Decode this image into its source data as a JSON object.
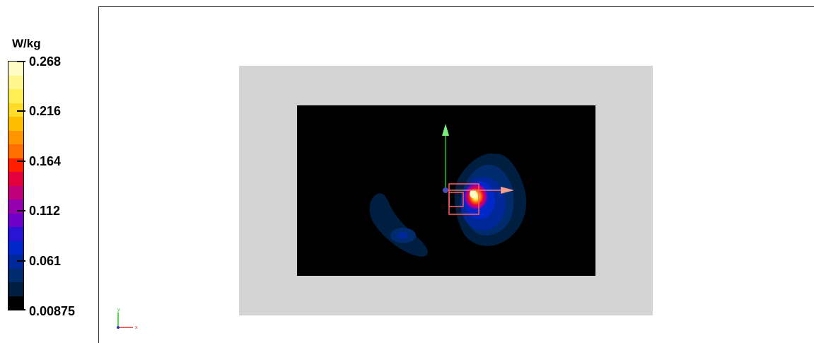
{
  "legend": {
    "unit": "W/kg",
    "ticks": [
      "0.268",
      "0.216",
      "0.164",
      "0.112",
      "0.061",
      "0.00875"
    ],
    "colors": [
      "#fffcc8",
      "#fff690",
      "#ffee55",
      "#ffdc2a",
      "#ffbe00",
      "#ff9600",
      "#ff6e00",
      "#ff1e00",
      "#e4003c",
      "#c0007a",
      "#9600ac",
      "#6e00c8",
      "#2814d2",
      "#0028c8",
      "#002898",
      "#002c6e",
      "#001e40",
      "#000000"
    ]
  },
  "viewer": {
    "outer_color": "#d4d4d4",
    "field_color": "#000000"
  },
  "axes": {
    "x": "x",
    "y": "y"
  }
}
